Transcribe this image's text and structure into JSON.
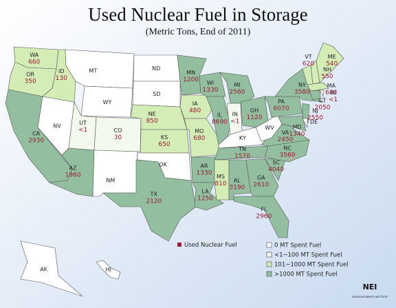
{
  "header": {
    "title": "Used Nuclear Fuel in Storage",
    "subtitle": "(Metric Tons, End of 2011)"
  },
  "states": [
    {
      "abbr": "WA",
      "value": 660,
      "color": "#d4ecb6"
    },
    {
      "abbr": "OR",
      "value": 350,
      "color": "#d4ecb6"
    },
    {
      "abbr": "CA",
      "value": 2930,
      "color": "#93bfa0"
    },
    {
      "abbr": "NV",
      "color": "#ffffff"
    },
    {
      "abbr": "ID",
      "value": 130,
      "color": "#d4ecb6"
    },
    {
      "abbr": "MT",
      "color": "#ffffff"
    },
    {
      "abbr": "WY",
      "color": "#ffffff"
    },
    {
      "abbr": "UT",
      "value": "<1",
      "color": "#f3f9ec"
    },
    {
      "abbr": "CO",
      "value": 30,
      "color": "#f3f9ec"
    },
    {
      "abbr": "AZ",
      "value": 1960,
      "color": "#93bfa0"
    },
    {
      "abbr": "NM",
      "color": "#ffffff"
    },
    {
      "abbr": "ND",
      "color": "#ffffff"
    },
    {
      "abbr": "SD",
      "color": "#ffffff"
    },
    {
      "abbr": "NE",
      "value": 850,
      "color": "#d4ecb6"
    },
    {
      "abbr": "KS",
      "value": 650,
      "color": "#d4ecb6"
    },
    {
      "abbr": "OK",
      "color": "#ffffff"
    },
    {
      "abbr": "TX",
      "value": 2120,
      "color": "#93bfa0"
    },
    {
      "abbr": "MN",
      "value": 1200,
      "color": "#93bfa0"
    },
    {
      "abbr": "IA",
      "value": 480,
      "color": "#d4ecb6"
    },
    {
      "abbr": "MO",
      "value": 680,
      "color": "#d4ecb6"
    },
    {
      "abbr": "AR",
      "value": 1330,
      "color": "#93bfa0"
    },
    {
      "abbr": "LA",
      "value": 1250,
      "color": "#93bfa0"
    },
    {
      "abbr": "WI",
      "value": 1330,
      "color": "#93bfa0"
    },
    {
      "abbr": "IL",
      "value": 8690,
      "color": "#93bfa0"
    },
    {
      "abbr": "MI",
      "value": 2560,
      "color": "#93bfa0"
    },
    {
      "abbr": "IN",
      "value": "<1",
      "color": "#f3f9ec"
    },
    {
      "abbr": "OH",
      "value": 1120,
      "color": "#93bfa0"
    },
    {
      "abbr": "KY",
      "color": "#ffffff"
    },
    {
      "abbr": "TN",
      "value": 1570,
      "color": "#93bfa0"
    },
    {
      "abbr": "MS",
      "value": 810,
      "color": "#d4ecb6"
    },
    {
      "abbr": "AL",
      "value": 3190,
      "color": "#93bfa0"
    },
    {
      "abbr": "GA",
      "value": 2610,
      "color": "#93bfa0"
    },
    {
      "abbr": "FL",
      "value": 2960,
      "color": "#93bfa0"
    },
    {
      "abbr": "SC",
      "value": 4040,
      "color": "#93bfa0"
    },
    {
      "abbr": "NC",
      "value": 3560,
      "color": "#93bfa0"
    },
    {
      "abbr": "VA",
      "value": 2450,
      "color": "#93bfa0"
    },
    {
      "abbr": "WV",
      "color": "#ffffff"
    },
    {
      "abbr": "PA",
      "value": 6070,
      "color": "#93bfa0"
    },
    {
      "abbr": "NY",
      "value": 3580,
      "color": "#93bfa0"
    },
    {
      "abbr": "NJ",
      "value": 2550,
      "color": "#93bfa0"
    },
    {
      "abbr": "MD",
      "value": 1340,
      "color": "#93bfa0"
    },
    {
      "abbr": "DE",
      "color": "#ffffff"
    },
    {
      "abbr": "VT",
      "value": 620,
      "color": "#d4ecb6"
    },
    {
      "abbr": "NH",
      "value": 550,
      "color": "#d4ecb6"
    },
    {
      "abbr": "ME",
      "value": 540,
      "color": "#d4ecb6"
    },
    {
      "abbr": "MA",
      "value": 660,
      "color": "#d4ecb6"
    },
    {
      "abbr": "CT",
      "value": 2050,
      "color": "#93bfa0"
    },
    {
      "abbr": "RI",
      "value": "<1",
      "color": "#f3f9ec"
    },
    {
      "abbr": "AK",
      "color": "#ffffff"
    },
    {
      "abbr": "HI",
      "color": "#ffffff"
    }
  ],
  "legend": {
    "marker": {
      "label": "Used Nuclear Fuel",
      "color": "#9b1b30"
    },
    "items": [
      {
        "label": "0 MT Spent Fuel",
        "color": "#ffffff"
      },
      {
        "label": "<1~100 MT Spent Fuel",
        "color": "#f3f9ec"
      },
      {
        "label": "101~1000 MT Spent Fuel",
        "color": "#d4ecb6"
      },
      {
        "label": ">1000 MT Spent Fuel",
        "color": "#93bfa0"
      }
    ]
  },
  "logo": {
    "text": "NEI",
    "tagline": "NUCLEAR ENERGY INSTITUTE"
  }
}
